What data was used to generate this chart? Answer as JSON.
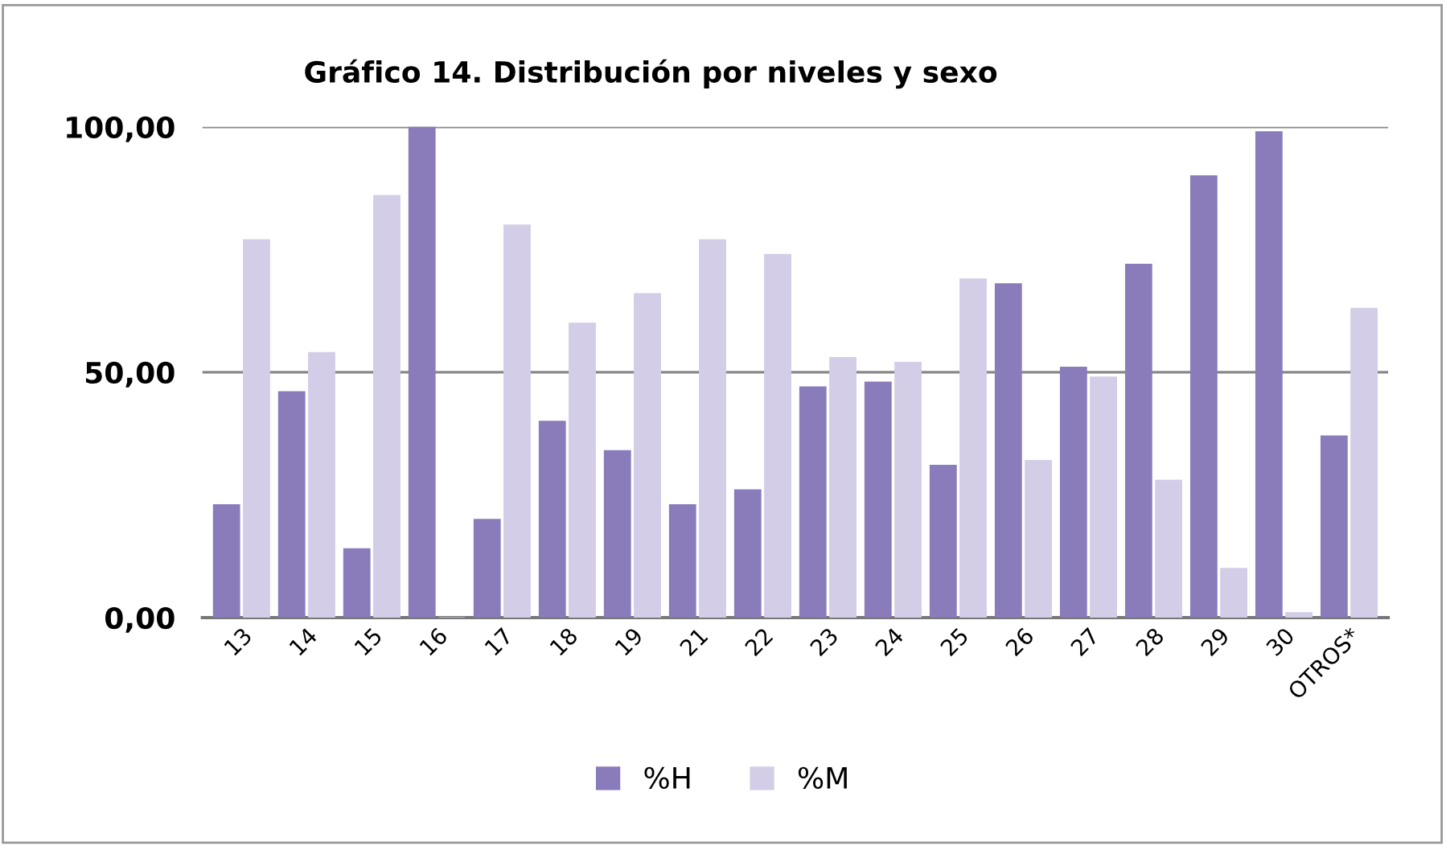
{
  "chart_data": {
    "type": "bar",
    "title": "Gráfico 14. Distribución por niveles y sexo",
    "categories": [
      "13",
      "14",
      "15",
      "16",
      "17",
      "18",
      "19",
      "21",
      "22",
      "23",
      "24",
      "25",
      "26",
      "27",
      "28",
      "29",
      "30",
      "OTROS*"
    ],
    "series": [
      {
        "name": "%H",
        "color": "#8a7bbb",
        "values": [
          23,
          46,
          14,
          100,
          20,
          40,
          34,
          23,
          26,
          47,
          48,
          31,
          68,
          51,
          72,
          90,
          99,
          37
        ]
      },
      {
        "name": "%M",
        "color": "#d3cde8",
        "values": [
          77,
          54,
          86,
          0,
          80,
          60,
          66,
          77,
          74,
          53,
          52,
          69,
          32,
          49,
          28,
          10,
          1,
          63
        ]
      }
    ],
    "ylim": [
      0,
      100
    ],
    "yticks": [
      {
        "value": 0,
        "label": "0,00"
      },
      {
        "value": 50,
        "label": "50,00"
      },
      {
        "value": 100,
        "label": "100,00"
      }
    ],
    "grid": "y",
    "legend": "bottom"
  }
}
